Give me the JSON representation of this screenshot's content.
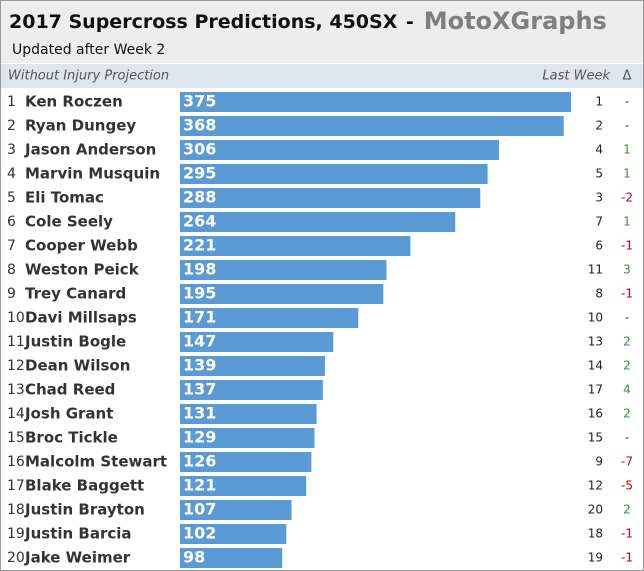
{
  "chart_data": {
    "type": "bar",
    "title": "2017 Supercross Predictions, 450SX",
    "separator": "-",
    "brand": "MotoXGraphs",
    "subtitle": "Updated after Week 2",
    "column_header": "Without Injury Projection",
    "last_week_header": "Last Week",
    "delta_header": "Δ",
    "color": "#5b9bd5",
    "xlim": [
      0,
      375
    ],
    "ranks": [
      1,
      2,
      3,
      4,
      5,
      6,
      7,
      8,
      9,
      10,
      11,
      12,
      13,
      14,
      15,
      16,
      17,
      18,
      19,
      20
    ],
    "categories": [
      "Ken Roczen",
      "Ryan Dungey",
      "Jason Anderson",
      "Marvin Musquin",
      "Eli Tomac",
      "Cole Seely",
      "Cooper Webb",
      "Weston Peick",
      "Trey Canard",
      "Davi Millsaps",
      "Justin Bogle",
      "Dean Wilson",
      "Chad Reed",
      "Josh Grant",
      "Broc Tickle",
      "Malcolm Stewart",
      "Blake Baggett",
      "Justin Brayton",
      "Justin Barcia",
      "Jake Weimer"
    ],
    "values": [
      375,
      368,
      306,
      295,
      288,
      264,
      221,
      198,
      195,
      171,
      147,
      139,
      137,
      131,
      129,
      126,
      121,
      107,
      102,
      98
    ],
    "last_week": [
      1,
      2,
      4,
      5,
      3,
      7,
      6,
      11,
      8,
      10,
      13,
      14,
      17,
      16,
      15,
      9,
      12,
      20,
      18,
      19
    ],
    "delta": [
      {
        "value": 0,
        "label": "-"
      },
      {
        "value": 0,
        "label": "-"
      },
      1,
      1,
      -2,
      1,
      -1,
      3,
      -1,
      {
        "value": 0,
        "label": "-"
      },
      2,
      2,
      4,
      2,
      {
        "value": 0,
        "label": "-"
      },
      -7,
      -5,
      2,
      -1,
      -1
    ],
    "positive_color": "#3b8f3b",
    "negative_color": "#c00000",
    "neutral_color": "#333333"
  }
}
